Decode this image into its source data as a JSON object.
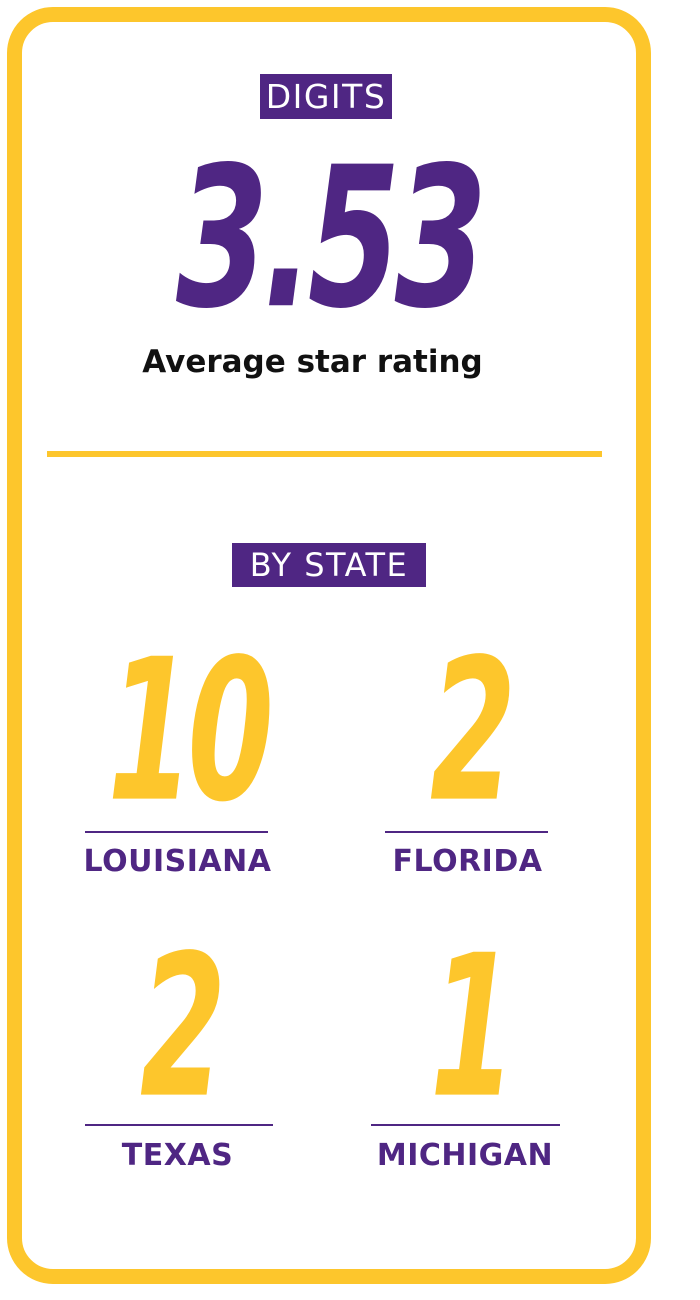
{
  "header": {
    "tag": "DIGITS"
  },
  "average": {
    "value": "3.53",
    "label": "Average star rating"
  },
  "by_state": {
    "tag": "BY STATE",
    "states": [
      {
        "count": "10",
        "name": "LOUISIANA"
      },
      {
        "count": "2",
        "name": "FLORIDA"
      },
      {
        "count": "2",
        "name": "TEXAS"
      },
      {
        "count": "1",
        "name": "MICHIGAN"
      }
    ]
  },
  "colors": {
    "purple": "#4F2683",
    "gold": "#FDC62C",
    "black": "#111111"
  }
}
